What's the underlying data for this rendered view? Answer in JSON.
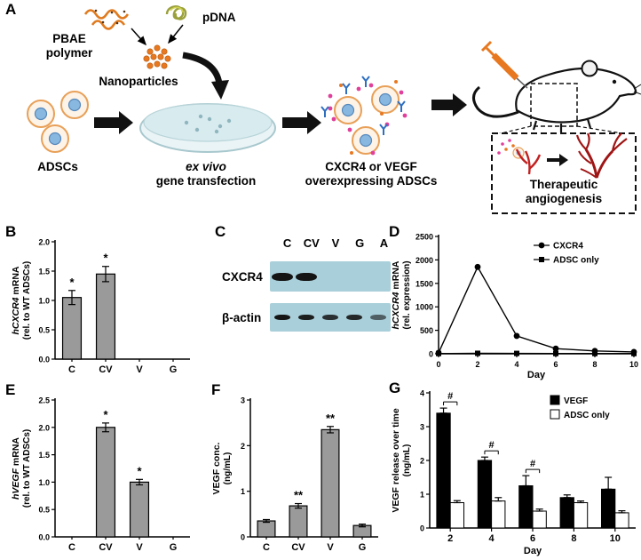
{
  "panels": {
    "A": {
      "label": "A",
      "pbae": "PBAE\npolymer",
      "pdna": "pDNA",
      "nanoparticles": "Nanoparticles",
      "adscs": "ADSCs",
      "transfection_line1": "ex vivo",
      "transfection_line2": "gene transfection",
      "overexpressing": "CXCR4 or VEGF\noverexpressing ADSCs",
      "therapeutic": "Therapeutic\nangiogenesis"
    },
    "B": {
      "label": "B"
    },
    "C": {
      "label": "C",
      "lanes": [
        "C",
        "CV",
        "V",
        "G",
        "A"
      ],
      "rows": [
        {
          "name": "CXCR4",
          "bands": [
            1,
            1,
            0,
            0,
            0
          ],
          "band_height": 9,
          "band_width": 24,
          "strip_height": 34
        },
        {
          "name": "β-actin",
          "bands": [
            1,
            0.95,
            0.85,
            0.9,
            0.6
          ],
          "band_height": 6,
          "band_width": 18,
          "strip_height": 32
        }
      ],
      "blot_color": "#a9cfda",
      "band_color": "#141414"
    },
    "D": {
      "label": "D"
    },
    "E": {
      "label": "E"
    },
    "F": {
      "label": "F"
    },
    "G": {
      "label": "G"
    }
  },
  "chart_data": [
    {
      "id": "chartB",
      "type": "bar",
      "categories": [
        "C",
        "CV",
        "V",
        "G"
      ],
      "values": [
        1.05,
        1.45,
        0,
        0
      ],
      "errors": [
        0.12,
        0.13,
        0,
        0
      ],
      "annotations": [
        "*",
        "*",
        "",
        ""
      ],
      "ylabel_italic": "hCXCR4",
      "ylabel_rest": " mRNA",
      "ylabel_sub": "(rel. to WT ADSCs)",
      "ylim": [
        0,
        2.0
      ],
      "ytick_values": [
        0,
        0.5,
        1.0,
        1.5,
        2.0
      ],
      "ytick_labels": [
        "0.0",
        "0.5",
        "1.0",
        "1.5",
        "2.0"
      ],
      "bar_color": "#9a9a9a"
    },
    {
      "id": "chartD",
      "type": "line",
      "x": [
        0,
        2,
        4,
        6,
        8,
        10
      ],
      "series": [
        {
          "name": "CXCR4",
          "marker": "circle",
          "values": [
            20,
            1850,
            380,
            110,
            60,
            40
          ]
        },
        {
          "name": "ADSC only",
          "marker": "square",
          "values": [
            5,
            10,
            8,
            5,
            5,
            5
          ]
        }
      ],
      "xlabel": "Day",
      "ylabel_italic": "hCXCR4",
      "ylabel_rest": " mRNA",
      "ylabel_sub": "(rel. expression)",
      "xlim": [
        0,
        10
      ],
      "ylim": [
        0,
        2500
      ],
      "xtick_values": [
        0,
        2,
        4,
        6,
        8,
        10
      ],
      "xtick_labels": [
        "0",
        "2",
        "4",
        "6",
        "8",
        "10"
      ],
      "ytick_values": [
        0,
        500,
        1000,
        1500,
        2000,
        2500
      ],
      "ytick_labels": [
        "0",
        "500",
        "1000",
        "1500",
        "2000",
        "2500"
      ],
      "line_color": "#000000"
    },
    {
      "id": "chartE",
      "type": "bar",
      "categories": [
        "C",
        "CV",
        "V",
        "G"
      ],
      "values": [
        0,
        2.0,
        1.0,
        0
      ],
      "errors": [
        0,
        0.08,
        0.05,
        0
      ],
      "annotations": [
        "",
        "*",
        "*",
        ""
      ],
      "ylabel_italic": "hVEGF",
      "ylabel_rest": " mRNA",
      "ylabel_sub": "(rel. to WT ADSCs)",
      "ylim": [
        0,
        2.5
      ],
      "ytick_values": [
        0,
        0.5,
        1.0,
        1.5,
        2.0,
        2.5
      ],
      "ytick_labels": [
        "0.0",
        "0.5",
        "1.0",
        "1.5",
        "2.0",
        "2.5"
      ],
      "bar_color": "#9a9a9a"
    },
    {
      "id": "chartF",
      "type": "bar",
      "categories": [
        "C",
        "CV",
        "V",
        "G"
      ],
      "values": [
        0.35,
        0.68,
        2.35,
        0.25
      ],
      "errors": [
        0.03,
        0.05,
        0.07,
        0.03
      ],
      "annotations": [
        "",
        "**",
        "**",
        ""
      ],
      "ylabel_italic": "",
      "ylabel_rest": "VEGF conc.",
      "ylabel_sub": "(ng/mL)",
      "ylim": [
        0,
        3
      ],
      "ytick_values": [
        0,
        1,
        2,
        3
      ],
      "ytick_labels": [
        "0",
        "1",
        "2",
        "3"
      ],
      "bar_color": "#9a9a9a"
    },
    {
      "id": "chartG",
      "type": "grouped-bar",
      "categories": [
        "2",
        "4",
        "6",
        "8",
        "10"
      ],
      "xlabel": "Day",
      "series": [
        {
          "name": "VEGF",
          "fill": "#000000",
          "values": [
            3.4,
            2.0,
            1.25,
            0.9,
            1.15
          ],
          "errors": [
            0.15,
            0.1,
            0.3,
            0.08,
            0.35
          ]
        },
        {
          "name": "ADSC only",
          "fill": "#ffffff",
          "values": [
            0.75,
            0.8,
            0.5,
            0.75,
            0.45
          ],
          "errors": [
            0.06,
            0.1,
            0.06,
            0.05,
            0.06
          ]
        }
      ],
      "annotations": [
        "#",
        "#",
        "#",
        "",
        ""
      ],
      "ylabel_italic": "",
      "ylabel_rest": "VEGF release over time",
      "ylabel_sub": "(ng/mL)",
      "ylim": [
        0,
        4
      ],
      "ytick_values": [
        0,
        1,
        2,
        3,
        4
      ],
      "ytick_labels": [
        "0",
        "1",
        "2",
        "3",
        "4"
      ]
    }
  ]
}
